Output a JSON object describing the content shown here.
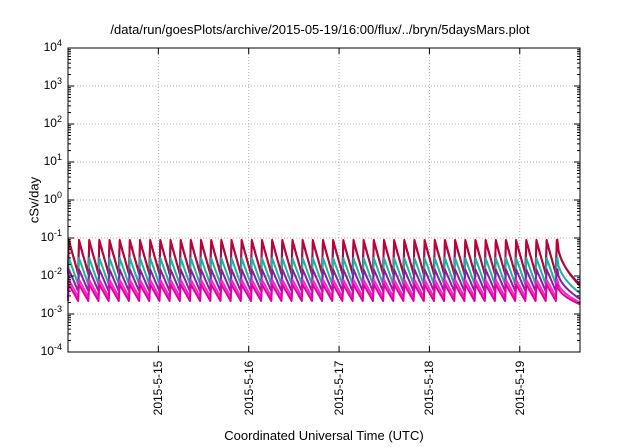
{
  "chart_data": {
    "type": "line",
    "title": "/data/run/goesPlots/archive/2015-05-19/16:00/flux/../bryn/5daysMars.plot",
    "xlabel": "Coordinated Universal Time (UTC)",
    "ylabel": "cSv/day",
    "yscale": "log",
    "ylim": [
      0.0001,
      10000
    ],
    "y_ticks": [
      {
        "base": "10",
        "exp": "-4"
      },
      {
        "base": "10",
        "exp": "-3"
      },
      {
        "base": "10",
        "exp": "-2"
      },
      {
        "base": "10",
        "exp": "-1"
      },
      {
        "base": "10",
        "exp": "0"
      },
      {
        "base": "10",
        "exp": "1"
      },
      {
        "base": "10",
        "exp": "2"
      },
      {
        "base": "10",
        "exp": "3"
      },
      {
        "base": "10",
        "exp": "4"
      }
    ],
    "x_ticks": [
      "2015-5-15",
      "2015-5-16",
      "2015-5-17",
      "2015-5-18",
      "2015-5-19"
    ],
    "xlim": [
      "2015-05-14 00:00",
      "2015-05-19 16:00"
    ],
    "grid": true,
    "legend": "none",
    "pattern": {
      "cycle_hours": 2.7,
      "decay_until": "2015-05-19 10:00",
      "final_peak": "2015-05-19 10:00"
    },
    "series": [
      {
        "color": "#1f3fd0",
        "peak": 0.08,
        "trough": 0.012,
        "end": 0.006
      },
      {
        "color": "#c00030",
        "peak": 0.09,
        "trough": 0.011,
        "end": 0.0055
      },
      {
        "color": "#20b0a0",
        "peak": 0.03,
        "trough": 0.006,
        "end": 0.0035
      },
      {
        "color": "#8020a0",
        "peak": 0.015,
        "trough": 0.004,
        "end": 0.0025
      },
      {
        "color": "#ff20d0",
        "peak": 0.008,
        "trough": 0.0028,
        "end": 0.002
      },
      {
        "color": "#e000a0",
        "peak": 0.006,
        "trough": 0.0022,
        "end": 0.0018
      }
    ]
  }
}
